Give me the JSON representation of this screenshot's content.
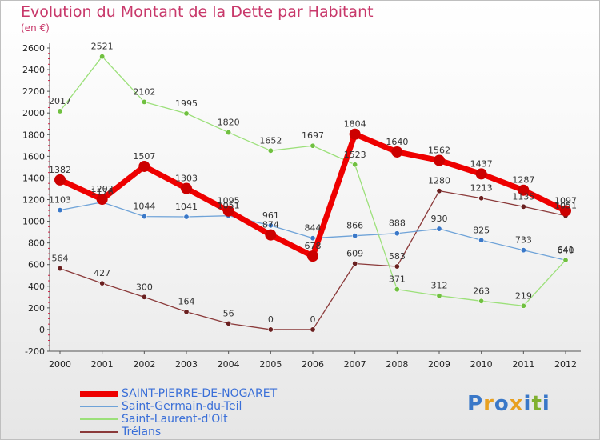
{
  "header": {
    "title": "Evolution du Montant de la Dette par Habitant",
    "unit": "(en €)"
  },
  "logo": {
    "letters": [
      "P",
      "r",
      "o",
      "x",
      "i",
      "t",
      "i"
    ],
    "colors": [
      "#3a78c8",
      "#e8a020",
      "#3a78c8",
      "#e8a020",
      "#3a78c8",
      "#80b030",
      "#3a78c8"
    ]
  },
  "chart_data": {
    "type": "line",
    "x": [
      "2000",
      "2001",
      "2002",
      "2003",
      "2004",
      "2005",
      "2006",
      "2007",
      "2008",
      "2009",
      "2010",
      "2011",
      "2012"
    ],
    "ylim": [
      -200,
      2600
    ],
    "yticks": [
      -200,
      0,
      200,
      400,
      600,
      800,
      1000,
      1200,
      1400,
      1600,
      1800,
      2000,
      2200,
      2400,
      2600
    ],
    "grid": false,
    "legend_position": "bottom-left",
    "series": [
      {
        "name": "SAINT-PIERRE-DE-NOGARET",
        "color": "#ee0000",
        "marker": "#cc0000",
        "width": 7,
        "values": [
          1382,
          1203,
          1507,
          1303,
          1095,
          874,
          678,
          1804,
          1640,
          1562,
          1437,
          1287,
          1097
        ],
        "labels": [
          "1382",
          "1203",
          "1507",
          "1303",
          "1095",
          "874",
          "678",
          "1804",
          "1640",
          "1562",
          "1437",
          "1287",
          "1097"
        ]
      },
      {
        "name": "Saint-Germain-du-Teil",
        "color": "#6fa3d8",
        "marker": "#3a78c8",
        "width": 1.3,
        "values": [
          1103,
          1176,
          1044,
          1041,
          1051,
          961,
          844,
          866,
          888,
          930,
          825,
          733,
          640
        ],
        "labels": [
          "1103",
          "1176",
          "1044",
          "1041",
          "1051",
          "961",
          "844",
          "866",
          "888",
          "930",
          "825",
          "733",
          "640"
        ]
      },
      {
        "name": "Saint-Laurent-d'Olt",
        "color": "#9ce07a",
        "marker": "#70c040",
        "width": 1.3,
        "values": [
          2017,
          2521,
          2102,
          1995,
          1820,
          1652,
          1697,
          1523,
          371,
          312,
          263,
          219,
          641
        ],
        "labels": [
          "2017",
          "2521",
          "2102",
          "1995",
          "1820",
          "1652",
          "1697",
          "1523",
          "371",
          "312",
          "263",
          "219",
          "641"
        ]
      },
      {
        "name": "Trélans",
        "color": "#8b3a3a",
        "marker": "#6a2020",
        "width": 1.3,
        "values": [
          564,
          427,
          300,
          164,
          56,
          0,
          0,
          609,
          583,
          1280,
          1213,
          1135,
          1051
        ],
        "labels": [
          "564",
          "427",
          "300",
          "164",
          "56",
          "0",
          "0",
          "609",
          "583",
          "1280",
          "1213",
          "1135",
          "1051"
        ]
      }
    ]
  }
}
